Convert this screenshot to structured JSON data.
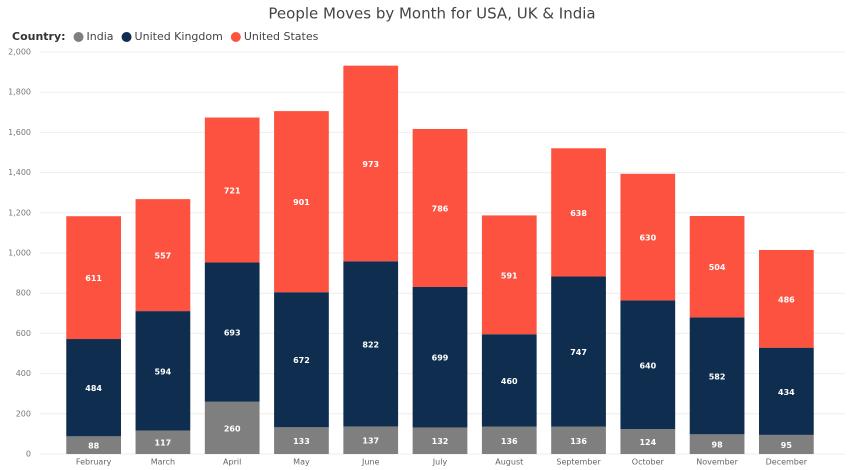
{
  "chart_data": {
    "type": "stacked_bar",
    "title": "People Moves by Month for USA, UK & India",
    "legend_title": "Country:",
    "categories": [
      "February",
      "March",
      "April",
      "May",
      "June",
      "July",
      "August",
      "September",
      "October",
      "November",
      "December"
    ],
    "series": [
      {
        "name": "India",
        "color": "#7f7f7f",
        "values": [
          88,
          117,
          260,
          133,
          137,
          132,
          136,
          136,
          124,
          98,
          95
        ]
      },
      {
        "name": "United Kingdom",
        "color": "#0f2d4f",
        "values": [
          484,
          594,
          693,
          672,
          822,
          699,
          460,
          747,
          640,
          582,
          434
        ]
      },
      {
        "name": "United States",
        "color": "#fd5240",
        "values": [
          611,
          557,
          721,
          901,
          973,
          786,
          591,
          638,
          630,
          504,
          486
        ]
      }
    ],
    "ylim": [
      0,
      2000
    ],
    "yticks": [
      0,
      200,
      400,
      600,
      800,
      {
        "value": 1000,
        "label": "1,000"
      },
      {
        "value": 1200,
        "label": "1,200"
      },
      {
        "value": 1400,
        "label": "1,400"
      },
      {
        "value": 1600,
        "label": "1,600"
      },
      {
        "value": 1800,
        "label": "1,800"
      },
      {
        "value": 2000,
        "label": "2,000"
      }
    ],
    "grid": true,
    "legend_position": "top-left"
  }
}
